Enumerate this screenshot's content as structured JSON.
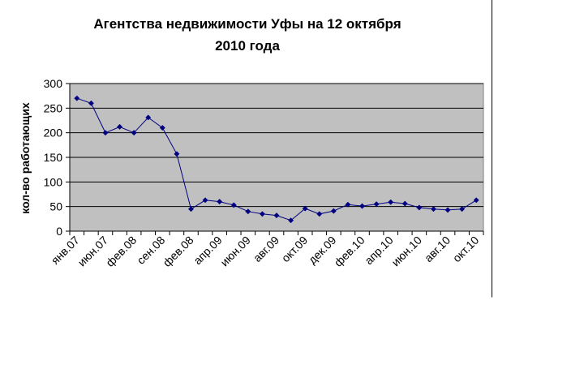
{
  "colors": {
    "plot_background": "#c0c0c0",
    "series_line": "#000080",
    "grid": "#000000"
  },
  "chart_data": {
    "type": "line",
    "title_lines": [
      "Агентства недвижимости Уфы на 12 октября",
      "2010 года"
    ],
    "xlabel": "",
    "ylabel": "кол-во работающих",
    "ylim": [
      0,
      300
    ],
    "yticks": [
      0,
      50,
      100,
      150,
      200,
      250,
      300
    ],
    "grid": true,
    "legend": "none",
    "x_tick_labels": [
      "янв.07",
      "июн.07",
      "фев.08",
      "сен.08",
      "фев.08",
      "апр.09",
      "июн.09",
      "авг.09",
      "окт.09",
      "дек.09",
      "фев.10",
      "апр.10",
      "июн.10",
      "авг.10",
      "окт.10"
    ],
    "x_tick_label_every": 2,
    "series": [
      {
        "values": [
          270,
          260,
          200,
          212,
          200,
          231,
          210,
          157,
          45,
          63,
          60,
          53,
          40,
          35,
          32,
          22,
          46,
          35,
          41,
          54,
          51,
          55,
          59,
          56,
          48,
          45,
          43,
          45,
          63
        ]
      }
    ]
  }
}
